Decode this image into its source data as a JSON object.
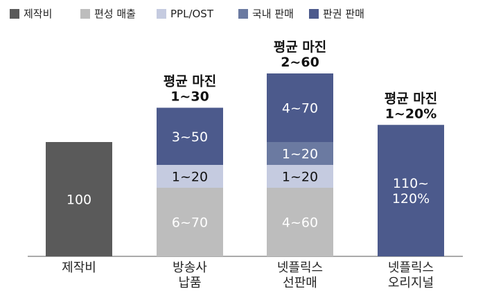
{
  "chart_data": {
    "type": "bar",
    "stacked": true,
    "legend_position": "top-left",
    "grid": false,
    "legend": [
      {
        "name": "제작비",
        "color": "#5a5a5a"
      },
      {
        "name": "편성 매출",
        "color": "#bdbdbd"
      },
      {
        "name": "PPL/OST",
        "color": "#c5cbe0"
      },
      {
        "name": "국내 판매",
        "color": "#6b7aa1"
      },
      {
        "name": "판권 판매",
        "color": "#4c5a8c"
      }
    ],
    "categories": [
      {
        "lines": [
          "제작비"
        ]
      },
      {
        "lines": [
          "방송사",
          "납품"
        ]
      },
      {
        "lines": [
          "넷플릭스",
          "선판매"
        ]
      },
      {
        "lines": [
          "넷플릭스",
          "오리지널"
        ]
      }
    ],
    "bars": [
      {
        "margin": [],
        "segments": [
          {
            "series": "제작비",
            "value": 100,
            "lines": [
              "100"
            ],
            "color": "#5a5a5a"
          }
        ]
      },
      {
        "margin": [
          "평균 마진",
          "1~30"
        ],
        "segments": [
          {
            "series": "편성 매출",
            "value": 60,
            "lines": [
              "6~70"
            ],
            "color": "#bdbdbd"
          },
          {
            "series": "PPL/OST",
            "value": 20,
            "lines": [
              "1~20"
            ],
            "color": "#c5cbe0",
            "dark_text": true
          },
          {
            "series": "판권 판매",
            "value": 50,
            "lines": [
              "3~50"
            ],
            "color": "#4c5a8c"
          }
        ]
      },
      {
        "margin": [
          "평균 마진",
          "2~60"
        ],
        "segments": [
          {
            "series": "편성 매출",
            "value": 60,
            "lines": [
              "4~60"
            ],
            "color": "#bdbdbd"
          },
          {
            "series": "PPL/OST",
            "value": 20,
            "lines": [
              "1~20"
            ],
            "color": "#c5cbe0",
            "dark_text": true
          },
          {
            "series": "국내 판매",
            "value": 20,
            "lines": [
              "1~20"
            ],
            "color": "#6b7aa1"
          },
          {
            "series": "판권 판매",
            "value": 60,
            "lines": [
              "4~70"
            ],
            "color": "#4c5a8c"
          }
        ]
      },
      {
        "margin": [
          "평균 마진",
          "1~20%"
        ],
        "segments": [
          {
            "series": "판권 판매",
            "value": 115,
            "lines": [
              "110~",
              "120%"
            ],
            "color": "#4c5a8c"
          }
        ]
      }
    ]
  }
}
